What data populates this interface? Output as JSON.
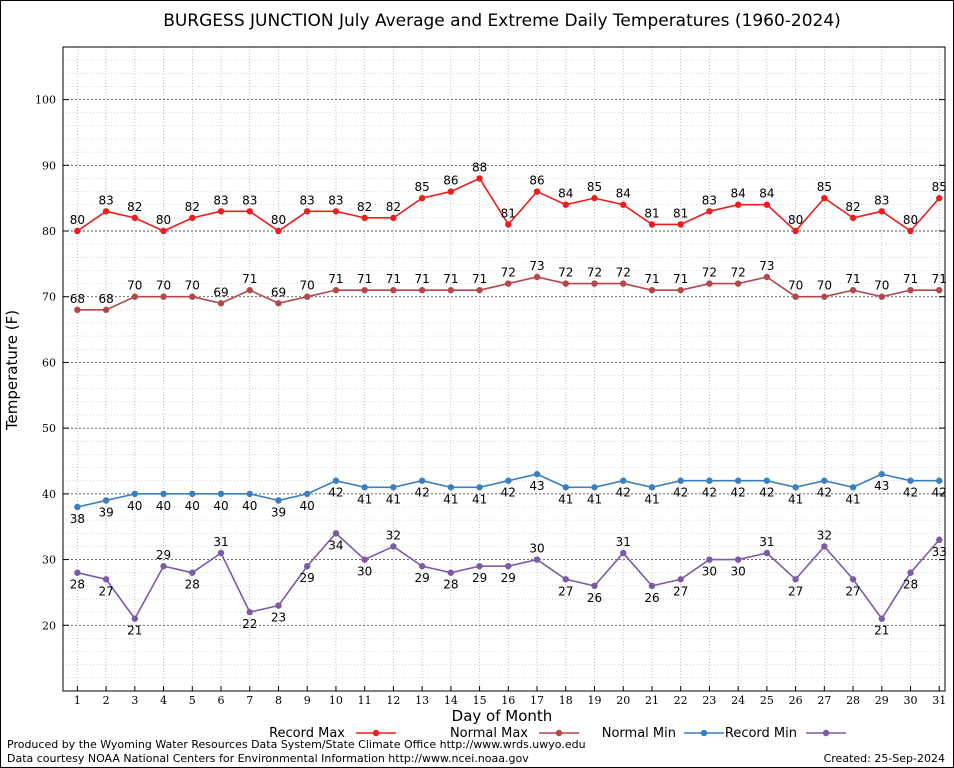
{
  "chart_data": {
    "type": "line",
    "title": "BURGESS JUNCTION July Average and Extreme Daily Temperatures (1960-2024)",
    "xlabel": "Day of Month",
    "ylabel": "Temperature (F)",
    "ylim": [
      10,
      108
    ],
    "xlim": [
      0.5,
      31.2
    ],
    "yticks": [
      20,
      30,
      40,
      50,
      60,
      70,
      80,
      90,
      100
    ],
    "x": [
      1,
      2,
      3,
      4,
      5,
      6,
      7,
      8,
      9,
      10,
      11,
      12,
      13,
      14,
      15,
      16,
      17,
      18,
      19,
      20,
      21,
      22,
      23,
      24,
      25,
      26,
      27,
      28,
      29,
      30,
      31
    ],
    "grid": true,
    "legend_position": "bottom",
    "series": [
      {
        "name": "Record Max",
        "color": "#ee1c1c",
        "values": [
          80,
          83,
          82,
          80,
          82,
          83,
          83,
          80,
          83,
          83,
          82,
          82,
          85,
          86,
          88,
          81,
          86,
          84,
          85,
          84,
          81,
          81,
          83,
          84,
          84,
          80,
          85,
          82,
          83,
          80,
          85
        ]
      },
      {
        "name": "Normal Max",
        "color": "#b5474a",
        "values": [
          68,
          68,
          70,
          70,
          70,
          69,
          71,
          69,
          70,
          71,
          71,
          71,
          71,
          71,
          71,
          72,
          73,
          72,
          72,
          72,
          71,
          71,
          72,
          72,
          73,
          70,
          70,
          71,
          70,
          71,
          71
        ]
      },
      {
        "name": "Normal Min",
        "color": "#3a7fc1",
        "values": [
          38,
          39,
          40,
          40,
          40,
          40,
          40,
          39,
          40,
          42,
          41,
          41,
          42,
          41,
          41,
          42,
          43,
          41,
          41,
          42,
          41,
          42,
          42,
          42,
          42,
          41,
          42,
          41,
          43,
          42,
          42
        ]
      },
      {
        "name": "Record Min",
        "color": "#7b5aa6",
        "values": [
          28,
          27,
          21,
          29,
          28,
          31,
          22,
          23,
          29,
          34,
          30,
          32,
          29,
          28,
          29,
          29,
          30,
          27,
          26,
          31,
          26,
          27,
          30,
          30,
          31,
          27,
          32,
          27,
          21,
          28,
          33
        ]
      }
    ]
  },
  "footer": {
    "credit_line1": "Produced by the Wyoming Water Resources Data System/State Climate Office http://www.wrds.uwyo.edu",
    "credit_line2": "Data courtesy NOAA National Centers for Environmental Information http://www.ncei.noaa.gov",
    "created": "Created:  25-Sep-2024"
  }
}
